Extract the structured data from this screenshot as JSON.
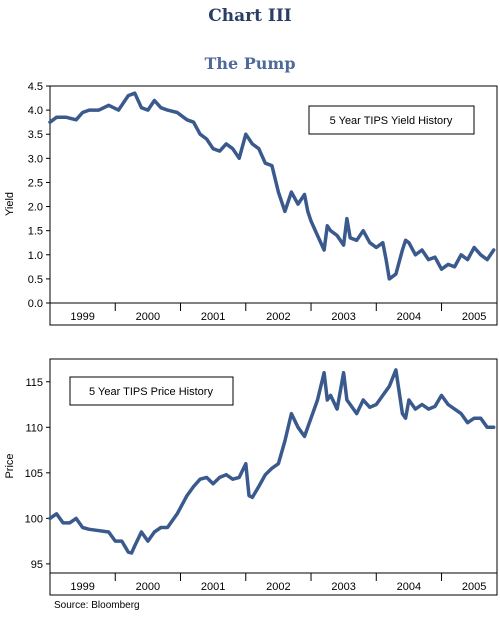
{
  "page": {
    "title": "Chart III",
    "subtitle": "The Pump",
    "source": "Source: Bloomberg"
  },
  "colors": {
    "line": "#3a5a8e",
    "title": "#2a3e63",
    "subtitle": "#4e6a99"
  },
  "chart_data": [
    {
      "type": "line",
      "title": "",
      "legend": "5 Year TIPS Yield History",
      "legend_placement": "top-right",
      "ylabel": "Yield",
      "xlabel": "",
      "ylim": [
        0.0,
        4.5
      ],
      "xlim": [
        1998.6,
        2005.45
      ],
      "y_ticks": [
        "0.0",
        "0.5",
        "1.0",
        "1.5",
        "2.0",
        "2.5",
        "3.0",
        "3.5",
        "4.0",
        "4.5"
      ],
      "x_ticks": [
        "1999",
        "2000",
        "2001",
        "2002",
        "2003",
        "2004",
        "2005"
      ],
      "grid": false,
      "series": [
        {
          "x": [
            1998.6,
            1998.7,
            1998.85,
            1999.0,
            1999.1,
            1999.2,
            1999.35,
            1999.5,
            1999.65,
            1999.8,
            1999.9,
            2000.0,
            2000.1,
            2000.2,
            2000.3,
            2000.4,
            2000.55,
            2000.7,
            2000.8,
            2000.9,
            2001.0,
            2001.1,
            2001.2,
            2001.3,
            2001.4,
            2001.5,
            2001.6,
            2001.7,
            2001.8,
            2001.9,
            2002.0,
            2002.1,
            2002.2,
            2002.3,
            2002.4,
            2002.5,
            2002.55,
            2002.6,
            2002.7,
            2002.8,
            2002.85,
            2002.9,
            2003.0,
            2003.1,
            2003.15,
            2003.2,
            2003.3,
            2003.4,
            2003.5,
            2003.6,
            2003.7,
            2003.75,
            2003.8,
            2003.9,
            2004.0,
            2004.05,
            2004.1,
            2004.2,
            2004.3,
            2004.4,
            2004.5,
            2004.6,
            2004.7,
            2004.8,
            2004.9,
            2005.0,
            2005.1,
            2005.2,
            2005.3,
            2005.4
          ],
          "values": [
            3.75,
            3.85,
            3.85,
            3.8,
            3.95,
            4.0,
            4.0,
            4.1,
            4.0,
            4.3,
            4.35,
            4.05,
            4.0,
            4.2,
            4.05,
            4.0,
            3.95,
            3.8,
            3.75,
            3.5,
            3.4,
            3.2,
            3.15,
            3.3,
            3.2,
            3.0,
            3.5,
            3.3,
            3.2,
            2.9,
            2.85,
            2.3,
            1.9,
            2.3,
            2.05,
            2.25,
            1.9,
            1.7,
            1.4,
            1.1,
            1.6,
            1.5,
            1.4,
            1.2,
            1.75,
            1.35,
            1.3,
            1.5,
            1.25,
            1.15,
            1.25,
            0.9,
            0.5,
            0.6,
            1.1,
            1.3,
            1.25,
            1.0,
            1.1,
            0.9,
            0.95,
            0.7,
            0.8,
            0.75,
            1.0,
            0.9,
            1.15,
            1.0,
            0.9,
            1.1
          ]
        }
      ]
    },
    {
      "type": "line",
      "title": "",
      "legend": "5 Year TIPS Price History",
      "legend_placement": "top-left",
      "ylabel": "Price",
      "xlabel": "",
      "ylim": [
        94,
        117.5
      ],
      "xlim": [
        1998.6,
        2005.45
      ],
      "y_ticks": [
        "95",
        "100",
        "105",
        "110",
        "115"
      ],
      "x_ticks": [
        "1999",
        "2000",
        "2001",
        "2002",
        "2003",
        "2004",
        "2005"
      ],
      "grid": false,
      "series": [
        {
          "x": [
            1998.6,
            1998.7,
            1998.8,
            1998.9,
            1999.0,
            1999.1,
            1999.2,
            1999.3,
            1999.5,
            1999.6,
            1999.7,
            1999.8,
            1999.85,
            1999.9,
            2000.0,
            2000.1,
            2000.2,
            2000.3,
            2000.4,
            2000.55,
            2000.7,
            2000.8,
            2000.9,
            2001.0,
            2001.1,
            2001.2,
            2001.3,
            2001.4,
            2001.5,
            2001.6,
            2001.65,
            2001.7,
            2001.8,
            2001.9,
            2002.0,
            2002.1,
            2002.2,
            2002.3,
            2002.4,
            2002.5,
            2002.6,
            2002.7,
            2002.8,
            2002.85,
            2002.9,
            2003.0,
            2003.1,
            2003.15,
            2003.2,
            2003.3,
            2003.4,
            2003.5,
            2003.6,
            2003.7,
            2003.8,
            2003.9,
            2004.0,
            2004.05,
            2004.1,
            2004.2,
            2004.3,
            2004.4,
            2004.5,
            2004.6,
            2004.7,
            2004.8,
            2004.9,
            2005.0,
            2005.1,
            2005.2,
            2005.3,
            2005.4
          ],
          "values": [
            100,
            100.5,
            99.5,
            99.5,
            100,
            99,
            98.8,
            98.7,
            98.5,
            97.5,
            97.5,
            96.3,
            96.2,
            97,
            98.5,
            97.5,
            98.5,
            99,
            99,
            100.5,
            102.5,
            103.5,
            104.3,
            104.5,
            103.8,
            104.5,
            104.8,
            104.3,
            104.5,
            106,
            102.5,
            102.3,
            103.5,
            104.8,
            105.5,
            106,
            108.5,
            111.5,
            110,
            109,
            111,
            113,
            116,
            113,
            113.5,
            112,
            116,
            113,
            112.5,
            111.5,
            113,
            112.2,
            112.5,
            113.5,
            114.5,
            116.3,
            111.5,
            111,
            113,
            112,
            112.5,
            112,
            112.3,
            113.5,
            112.5,
            112,
            111.5,
            110.5,
            111,
            111,
            110,
            110
          ]
        }
      ]
    }
  ]
}
